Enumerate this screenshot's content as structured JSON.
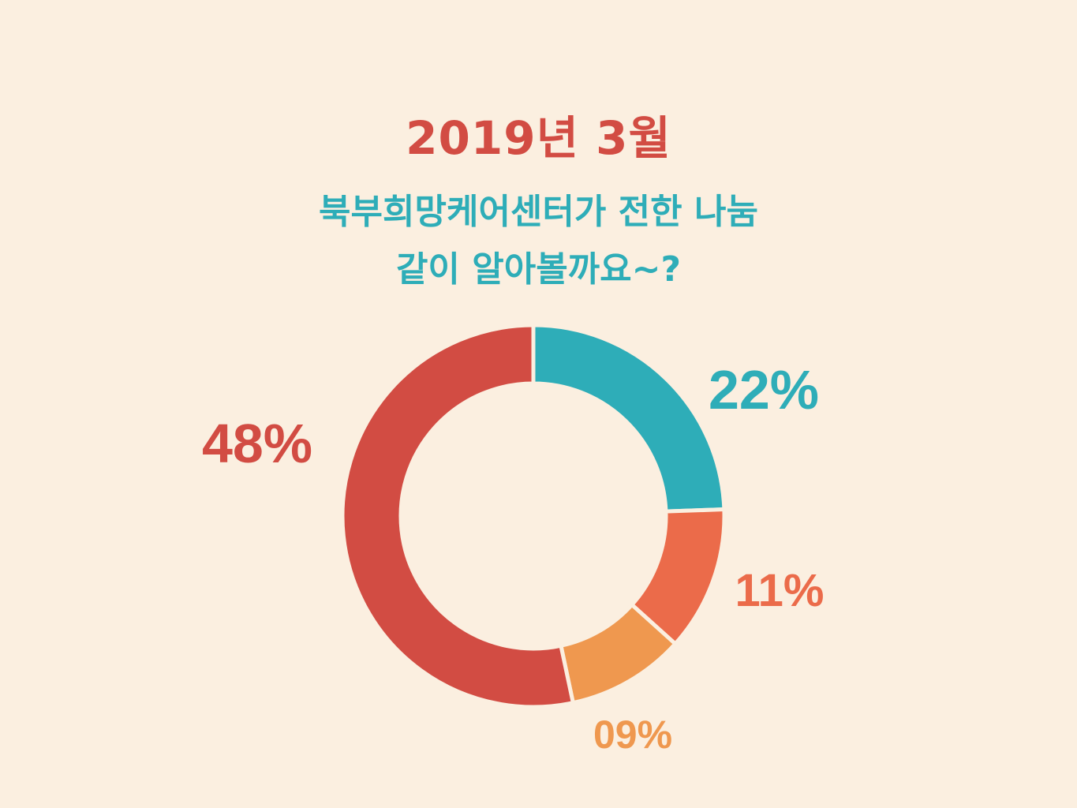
{
  "title": "2019년 3월",
  "subtitle": {
    "line1": "북부희망케어센터가 전한 나눔",
    "line2": "같이 알아볼까요~?"
  },
  "chart_data": {
    "type": "pie",
    "title": "2019년 3월",
    "subtitle": "북부희망케어센터가 전한 나눔 같이 알아볼까요~?",
    "slices": [
      {
        "value": 22,
        "label": "22%",
        "color": "#2EADB8"
      },
      {
        "value": 11,
        "label": "11%",
        "color": "#EB6B4A"
      },
      {
        "value": 9,
        "label": "09%",
        "color": "#EF984F"
      },
      {
        "value": 48,
        "label": "48%",
        "color": "#D24C43"
      }
    ],
    "legend": "none"
  }
}
